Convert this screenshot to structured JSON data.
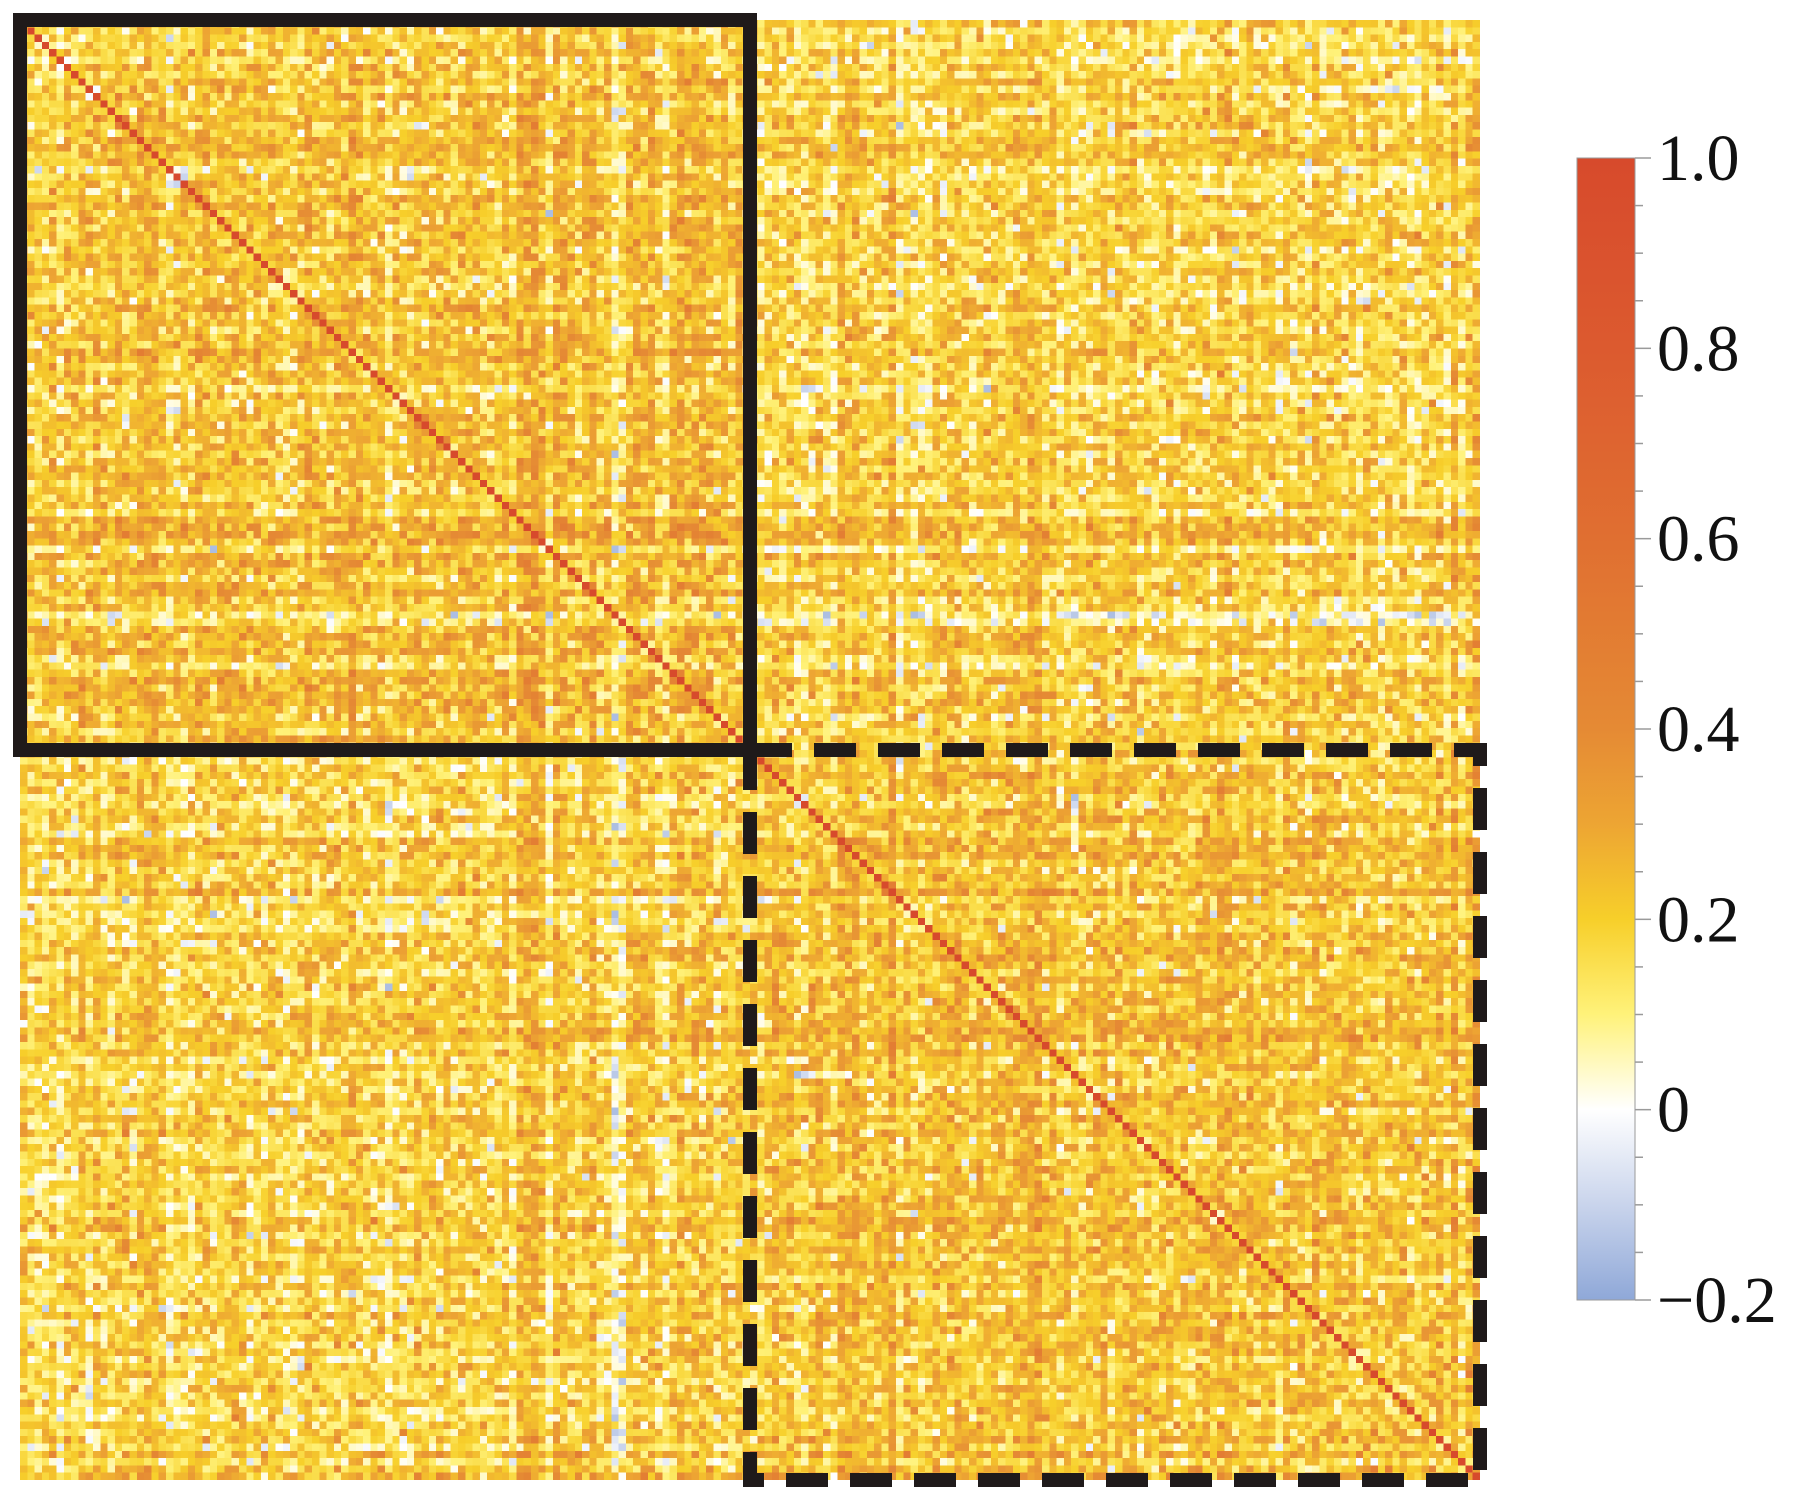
{
  "chart_data": {
    "type": "heatmap",
    "title": "",
    "xlabel": "",
    "ylabel": "",
    "matrix_size": 200,
    "blocks": [
      {
        "name": "",
        "start_index": 0,
        "end_index": 100,
        "outline": "solid"
      },
      {
        "name": "",
        "start_index": 100,
        "end_index": 200,
        "outline": "dashed"
      }
    ],
    "values": {
      "diagonal": 1.0,
      "within_block_mean": 0.22,
      "between_block_mean": 0.18,
      "typical_range": [
        -0.1,
        0.45
      ]
    },
    "colorbar": {
      "range": [
        -0.2,
        1.0
      ],
      "ticks": [
        {
          "value": 1.0,
          "label": "1.0"
        },
        {
          "value": 0.8,
          "label": "0.8"
        },
        {
          "value": 0.6,
          "label": "0.6"
        },
        {
          "value": 0.4,
          "label": "0.4"
        },
        {
          "value": 0.2,
          "label": "0.2"
        },
        {
          "value": 0,
          "label": "0"
        },
        {
          "value": -0.2,
          "label": "−0.2"
        }
      ],
      "color_stops": [
        {
          "value": -0.2,
          "color": "#8fa8d8"
        },
        {
          "value": -0.1,
          "color": "#c9d4ec"
        },
        {
          "value": 0.0,
          "color": "#ffffff"
        },
        {
          "value": 0.1,
          "color": "#fff27a"
        },
        {
          "value": 0.2,
          "color": "#f7cf2a"
        },
        {
          "value": 0.3,
          "color": "#eda533"
        },
        {
          "value": 0.4,
          "color": "#e58a34"
        },
        {
          "value": 0.6,
          "color": "#e06f31"
        },
        {
          "value": 0.8,
          "color": "#dc5a2f"
        },
        {
          "value": 1.0,
          "color": "#d74a2c"
        }
      ]
    },
    "grid": false,
    "legend": "right"
  }
}
